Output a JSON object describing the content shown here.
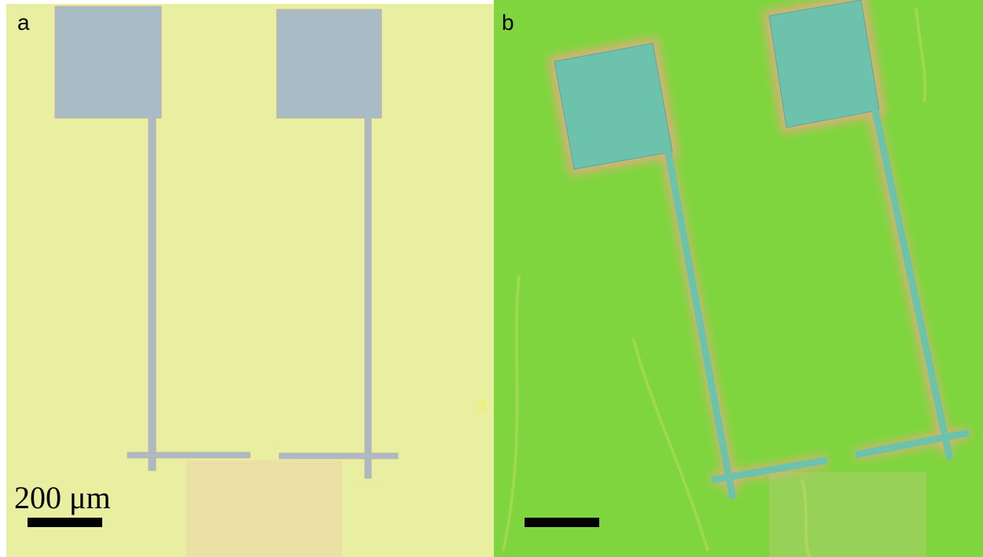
{
  "panels": [
    {
      "label": "a"
    },
    {
      "label": "b"
    }
  ],
  "scale_bar": {
    "label": "200 μm"
  },
  "stray_text": "3"
}
